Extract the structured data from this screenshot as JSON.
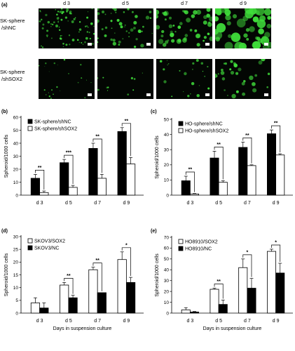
{
  "panel_a": {
    "label": "(a)",
    "days": [
      "d 3",
      "d 5",
      "d 7",
      "d 9"
    ],
    "rows": [
      {
        "label_line1": "SK-sphere",
        "label_line2": "/shNC",
        "density": [
          0.85,
          0.55,
          0.6,
          0.55
        ],
        "size": [
          1.6,
          2.2,
          3.0,
          5.5
        ]
      },
      {
        "label_line1": "SK-sphere",
        "label_line2": "/shSOX2",
        "density": [
          0.25,
          0.12,
          0.25,
          0.35
        ],
        "size": [
          1.0,
          1.3,
          1.8,
          2.6
        ]
      }
    ],
    "green": "#3fdc3a"
  },
  "chart_data": [
    {
      "panel": "(b)",
      "type": "bar",
      "categories": [
        "d 3",
        "d 5",
        "d 7",
        "d 9"
      ],
      "ylabel": "Spheroid/1000 cells",
      "xlabel": "",
      "ylim": [
        0,
        60
      ],
      "yticks": [
        0,
        10,
        20,
        30,
        40,
        50,
        60
      ],
      "legend": "top-left",
      "series": [
        {
          "name": "SK-sphere/shNC",
          "values": [
            13,
            25,
            36,
            49
          ],
          "errors": [
            3,
            2.5,
            4,
            3
          ],
          "fill": "#000000"
        },
        {
          "name": "SK-sphere/shSOX2",
          "values": [
            2,
            6,
            13,
            24
          ],
          "errors": [
            1.2,
            1.5,
            3,
            5
          ],
          "fill": "#ffffff"
        }
      ],
      "significance": [
        "**",
        "***",
        "**",
        "**"
      ]
    },
    {
      "panel": "(c)",
      "type": "bar",
      "categories": [
        "d 3",
        "d 5",
        "d 7",
        "d 9"
      ],
      "ylabel": "Spheroid/1000 cells",
      "xlabel": "",
      "ylim": [
        0,
        50
      ],
      "yticks": [
        0,
        10,
        20,
        30,
        40,
        50
      ],
      "legend": "top-left",
      "series": [
        {
          "name": "HO-sphere/shNC",
          "values": [
            9.5,
            24.5,
            31.5,
            40.5
          ],
          "errors": [
            3,
            4.5,
            3.5,
            2.5
          ],
          "fill": "#000000"
        },
        {
          "name": "HO-sphere/shSOX2",
          "values": [
            0.8,
            8.5,
            19.5,
            26.5
          ],
          "errors": [
            0.3,
            1,
            0.5,
            0.8
          ],
          "fill": "#ffffff"
        }
      ],
      "significance": [
        "**",
        "**",
        "**",
        "**"
      ]
    },
    {
      "panel": "(d)",
      "type": "bar",
      "categories": [
        "d 3",
        "d 5",
        "d 7",
        "d 9"
      ],
      "ylabel": "Spheroid/1000 cells",
      "xlabel": "Days in suspension culture",
      "ylim": [
        0,
        30
      ],
      "yticks": [
        0,
        5,
        10,
        15,
        20,
        25,
        30
      ],
      "legend": "top-left",
      "series": [
        {
          "name": "SKOV3/SOX2",
          "values": [
            4,
            11,
            17,
            21
          ],
          "errors": [
            2,
            1,
            1,
            3
          ],
          "fill": "#ffffff"
        },
        {
          "name": "SKOV3/NC",
          "values": [
            2,
            6,
            8,
            12
          ],
          "errors": [
            2,
            1,
            0,
            2
          ],
          "fill": "#000000"
        }
      ],
      "significance": [
        "",
        "**",
        "**",
        "*"
      ]
    },
    {
      "panel": "(e)",
      "type": "bar",
      "categories": [
        "d 3",
        "d 5",
        "d 7",
        "d 9"
      ],
      "ylabel": "Spheroid/1000 cells",
      "xlabel": "Days in suspension culture",
      "ylim": [
        0,
        70
      ],
      "yticks": [
        0,
        10,
        20,
        30,
        40,
        50,
        60,
        70
      ],
      "legend": "top-left",
      "series": [
        {
          "name": "HO8910/SOX2",
          "values": [
            3,
            22,
            42,
            57
          ],
          "errors": [
            2,
            1,
            8,
            2
          ],
          "fill": "#ffffff"
        },
        {
          "name": "HO8910/NC",
          "values": [
            1,
            8,
            23,
            37
          ],
          "errors": [
            0.5,
            4,
            9,
            9
          ],
          "fill": "#000000"
        }
      ],
      "significance": [
        "",
        "**",
        "*",
        "*"
      ]
    }
  ]
}
